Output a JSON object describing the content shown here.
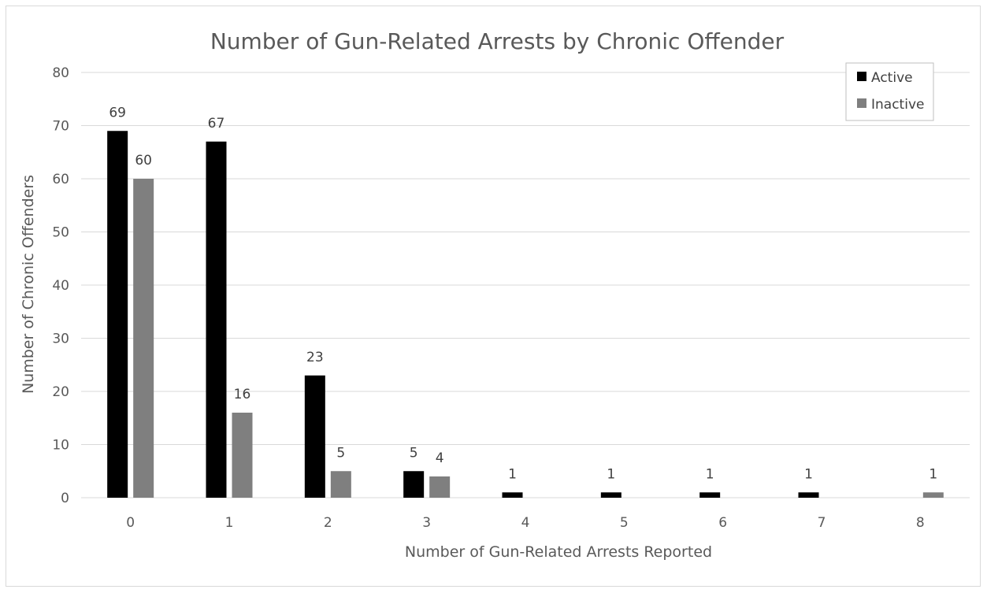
{
  "chart_data": {
    "type": "bar",
    "title": "Number of Gun-Related Arrests by Chronic Offender",
    "xlabel": "Number of Gun-Related Arrests Reported",
    "ylabel": "Number of Chronic Offenders",
    "categories": [
      "0",
      "1",
      "2",
      "3",
      "4",
      "5",
      "6",
      "7",
      "8"
    ],
    "ylim": [
      0,
      80
    ],
    "yticks": [
      "0",
      "10",
      "20",
      "30",
      "40",
      "50",
      "60",
      "70",
      "80"
    ],
    "grid": true,
    "legend_position": "top-right",
    "series": [
      {
        "name": "Active",
        "color": "#000000",
        "values": [
          69,
          67,
          23,
          5,
          1,
          1,
          1,
          1,
          null
        ]
      },
      {
        "name": "Inactive",
        "color": "#7f7f7f",
        "values": [
          60,
          16,
          5,
          4,
          null,
          null,
          null,
          null,
          1
        ]
      }
    ]
  }
}
